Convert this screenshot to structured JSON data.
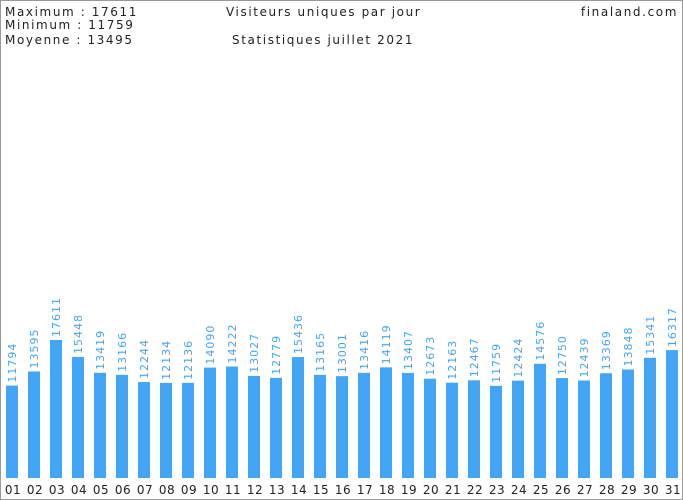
{
  "header": {
    "max": "Maximum : 17611",
    "min": "Minimum : 11759",
    "avg": "Moyenne : 13495",
    "site": "finaland.com"
  },
  "chart_data": {
    "type": "bar",
    "title": "Visiteurs uniques par jour",
    "subtitle": "Statistiques juillet 2021",
    "color": "#42a5f5",
    "categories": [
      "01",
      "02",
      "03",
      "04",
      "05",
      "06",
      "07",
      "08",
      "09",
      "10",
      "11",
      "12",
      "13",
      "14",
      "15",
      "16",
      "17",
      "18",
      "19",
      "20",
      "21",
      "22",
      "23",
      "24",
      "25",
      "26",
      "27",
      "28",
      "29",
      "30",
      "31"
    ],
    "values": [
      11794,
      13595,
      17611,
      15448,
      13419,
      13166,
      12244,
      12134,
      12136,
      14090,
      14222,
      13027,
      12779,
      15436,
      13165,
      13001,
      13416,
      14119,
      13407,
      12673,
      12163,
      12467,
      11759,
      12424,
      14576,
      12750,
      12439,
      13369,
      13848,
      15341,
      16317
    ]
  }
}
